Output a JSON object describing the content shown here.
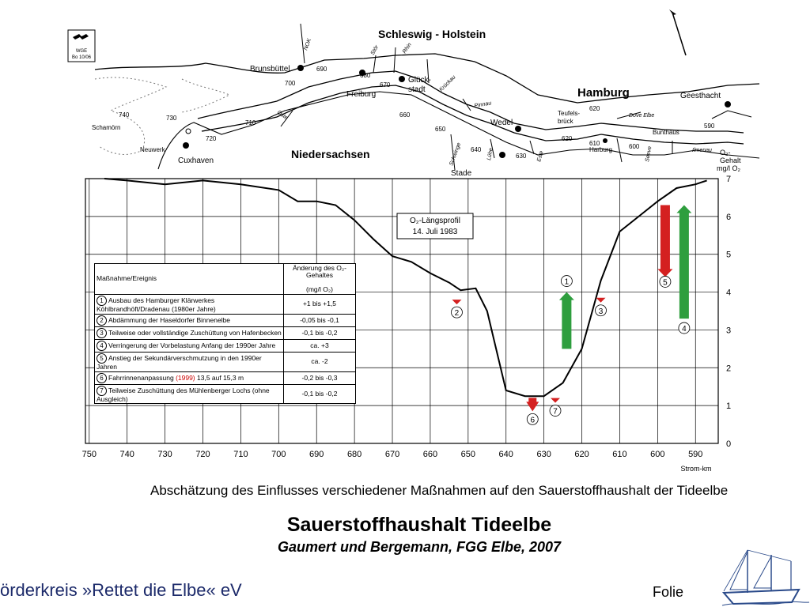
{
  "map": {
    "stamp": [
      "WGE",
      "Bo 10/06"
    ],
    "states": [
      "Schleswig - Holstein",
      "Niedersachsen"
    ],
    "city": "Hamburg",
    "places": [
      "Brunsbüttel",
      "Freiburg",
      "Glück-",
      "stadt",
      "Wedel",
      "Geesthacht",
      "Cuxhaven",
      "Stade",
      "Harburg",
      "Teufels-",
      "brück",
      "Bunthaus",
      "Schamörn",
      "Neuwerk"
    ],
    "rivers": [
      "NOK",
      "Stör",
      "Rhin",
      "Krückau",
      "Pinnau",
      "Oste",
      "Schwinge",
      "Lühe",
      "Este",
      "Dove Elbe",
      "Seeve",
      "Ilmenau"
    ],
    "km_marks": [
      "740",
      "730",
      "720",
      "710",
      "700",
      "690",
      "680",
      "670",
      "660",
      "650",
      "640",
      "630",
      "620",
      "620",
      "610",
      "600",
      "590"
    ],
    "o2_label": [
      "O₂-",
      "Gehalt",
      "mg/l O₂"
    ]
  },
  "chart_data": {
    "type": "line",
    "title": "",
    "xlabel": "Strom-km",
    "ylabel": "",
    "xlim": [
      751,
      584
    ],
    "ylim": [
      0,
      7
    ],
    "x_ticks": [
      "750",
      "740",
      "730",
      "720",
      "710",
      "700",
      "690",
      "680",
      "670",
      "660",
      "650",
      "640",
      "630",
      "620",
      "610",
      "600",
      "590"
    ],
    "y_ticks": [
      "0",
      "1",
      "2",
      "3",
      "4",
      "5",
      "6",
      "7"
    ],
    "profile_label": [
      "O₂-Längsprofil",
      "14. Juli 1983"
    ],
    "series": [
      {
        "x": [
          746,
          740,
          730,
          720,
          710,
          700,
          695,
          690,
          685,
          680,
          675,
          670,
          665,
          660,
          655,
          652,
          648,
          645,
          640,
          635,
          630,
          625,
          620,
          615,
          610,
          605,
          600,
          595,
          590,
          587
        ],
        "y": [
          7.0,
          6.95,
          6.85,
          6.95,
          6.85,
          6.7,
          6.4,
          6.4,
          6.3,
          5.9,
          5.4,
          4.95,
          4.8,
          4.5,
          4.25,
          4.05,
          4.1,
          3.5,
          1.4,
          1.25,
          1.25,
          1.6,
          2.5,
          4.3,
          5.6,
          6.0,
          6.4,
          6.75,
          6.85,
          6.95
        ]
      }
    ],
    "annotations": [
      {
        "num": "1",
        "x": 624,
        "from": 2.5,
        "to": 4.0,
        "direction": "up",
        "color": "#2e9e3e"
      },
      {
        "num": "2",
        "x": 653,
        "from": 3.8,
        "to": 3.75,
        "direction": "down",
        "color": "#d42020"
      },
      {
        "num": "3",
        "x": 615,
        "from": 3.85,
        "to": 3.7,
        "direction": "down",
        "color": "#d42020"
      },
      {
        "num": "4",
        "x": 593,
        "from": 3.3,
        "to": 6.3,
        "direction": "up",
        "color": "#2e9e3e"
      },
      {
        "num": "5",
        "x": 598,
        "from": 6.3,
        "to": 4.4,
        "direction": "down",
        "color": "#d42020"
      },
      {
        "num": "6",
        "x": 633,
        "from": 1.1,
        "to": 0.85,
        "direction": "down",
        "color": "#d42020"
      },
      {
        "num": "7",
        "x": 627,
        "from": 1.2,
        "to": 1.05,
        "direction": "down",
        "color": "#d42020"
      }
    ]
  },
  "table": {
    "headers": [
      "Maßnahme/Ereignis",
      "Änderung des O₂-Gehaltes",
      "(mg/l O₂)"
    ],
    "rows": [
      {
        "num": "1",
        "text": "Ausbau des Hamburger Klärwerkes Köhlbrandhöft/Dradenau (1980er Jahre)",
        "change": "+1 bis +1,5"
      },
      {
        "num": "2",
        "text": "Abdämmung der Haseldorfer Binnenelbe",
        "change": "-0,05 bis -0,1"
      },
      {
        "num": "3",
        "text": "Teilweise oder vollständige Zuschüttung von Hafenbecken",
        "change": "-0,1 bis -0,2"
      },
      {
        "num": "4",
        "text": "Verringerung der Vorbelastung Anfang der 1990er Jahre",
        "change": "ca. +3"
      },
      {
        "num": "5",
        "text": "Anstieg der Sekundärverschmutzung in den 1990er Jahren",
        "change": "ca. -2"
      },
      {
        "num": "6",
        "text_pre": "Fahrrinnenanpassung ",
        "text_red": "(1999)",
        "text_post": " 13,5 auf 15,3 m",
        "change": "-0,2 bis -0,3"
      },
      {
        "num": "7",
        "text": "Teilweise Zuschüttung des Mühlenberger Lochs (ohne Ausgleich)",
        "change": "-0,1 bis -0,2"
      }
    ]
  },
  "caption": "Abschätzung des Einflusses verschiedener Maßnahmen auf den Sauerstoffhaushalt der Tideelbe",
  "title": "Sauerstoffhaushalt Tideelbe",
  "subtitle": "Gaumert und Bergemann, FGG Elbe, 2007",
  "footer": {
    "left": "örderkreis »Rettet die Elbe« eV",
    "right": "Folie"
  },
  "colors": {
    "text": "#000000",
    "footer": "#1c2a6a",
    "arrow_up": "#2e9e3e",
    "arrow_down": "#d42020",
    "ship": "#2a4a8a"
  }
}
